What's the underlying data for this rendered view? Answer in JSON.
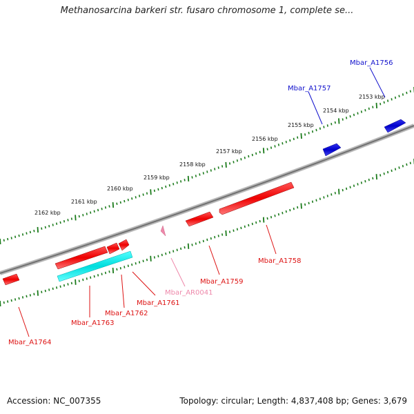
{
  "title": "Methanosarcina barkeri str. fusaro chromosome 1, complete se...",
  "footer": {
    "accession": "Accession: NC_007355",
    "summary": "Topology: circular; Length: 4,837,408 bp; Genes: 3,679"
  },
  "colors": {
    "backbone": "#808080",
    "tick": "#1a7a1a",
    "gene_forward": "#1010cc",
    "gene_reverse": "#ee1111",
    "rna": "#00e8e8",
    "label_other": "#ee88aa"
  },
  "ticks": {
    "labels": [
      "2162 kbp",
      "2161 kbp",
      "2160 kbp",
      "2159 kbp",
      "2158 kbp",
      "2157 kbp",
      "2156 kbp",
      "2155 kbp",
      "2154 kbp",
      "2153 kbp"
    ]
  },
  "genes": [
    {
      "label": "Mbar_A1756",
      "strand": "forward",
      "color": "#1010cc"
    },
    {
      "label": "Mbar_A1757",
      "strand": "forward",
      "color": "#1010cc"
    },
    {
      "label": "Mbar_A1758",
      "strand": "reverse",
      "color": "#dd1111"
    },
    {
      "label": "Mbar_A1759",
      "strand": "reverse",
      "color": "#dd1111"
    },
    {
      "label": "Mbar_AR0041",
      "strand": "reverse",
      "color": "#ee88aa"
    },
    {
      "label": "Mbar_A1761",
      "strand": "reverse",
      "color": "#dd1111"
    },
    {
      "label": "Mbar_A1762",
      "strand": "reverse",
      "color": "#dd1111"
    },
    {
      "label": "Mbar_A1763",
      "strand": "reverse",
      "color": "#dd1111"
    },
    {
      "label": "Mbar_A1764",
      "strand": "reverse",
      "color": "#dd1111"
    }
  ]
}
